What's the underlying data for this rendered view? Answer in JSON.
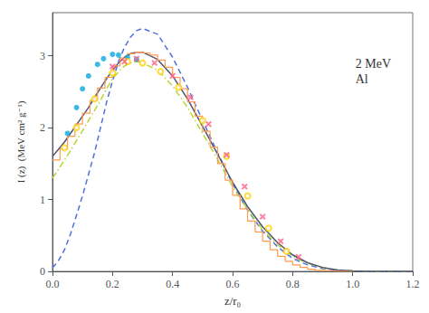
{
  "chart_data": {
    "type": "line",
    "annotation": "2 MeV\nAl",
    "xlabel": "z/r₀",
    "ylabel": "I (z)  (MeV cm² g⁻¹)",
    "xlim": [
      0,
      1.2
    ],
    "ylim": [
      0,
      3.6
    ],
    "xticks": [
      {
        "value": 0,
        "label": "0.0"
      },
      0.2,
      0.4,
      0.6,
      0.8,
      {
        "value": 1.0,
        "label": "1.0"
      },
      1.2
    ],
    "yticks": [
      0,
      1,
      2,
      3
    ],
    "grid": false,
    "series": [
      {
        "type": "line",
        "line_style": "dashed",
        "x": [
          0.0,
          0.02,
          0.04,
          0.06,
          0.08,
          0.1,
          0.12,
          0.14,
          0.16,
          0.18,
          0.2,
          0.22,
          0.24,
          0.26,
          0.28,
          0.3,
          0.35,
          0.4,
          0.45,
          0.5,
          0.55,
          0.6,
          0.65,
          0.7,
          0.75,
          0.8,
          0.85,
          0.9,
          0.95,
          1.0,
          1.05,
          1.1,
          1.15,
          1.2
        ],
        "values": [
          0.05,
          0.15,
          0.3,
          0.52,
          0.78,
          1.05,
          1.35,
          1.65,
          2.0,
          2.35,
          2.65,
          2.92,
          3.12,
          3.26,
          3.35,
          3.38,
          3.3,
          2.98,
          2.56,
          2.1,
          1.65,
          1.22,
          0.85,
          0.56,
          0.34,
          0.18,
          0.09,
          0.04,
          0.015,
          0.005,
          0.001,
          0.0,
          0.0,
          0.0
        ]
      },
      {
        "type": "line",
        "line_style": "dashdot",
        "x": [
          0.0,
          0.02,
          0.04,
          0.06,
          0.08,
          0.1,
          0.12,
          0.14,
          0.16,
          0.18,
          0.2,
          0.22,
          0.24,
          0.26,
          0.28,
          0.3,
          0.35,
          0.4,
          0.45,
          0.5,
          0.55,
          0.6,
          0.65,
          0.7,
          0.75,
          0.8,
          0.85,
          0.9,
          0.95,
          1.0,
          1.05,
          1.1,
          1.15,
          1.2
        ],
        "values": [
          1.3,
          1.42,
          1.55,
          1.68,
          1.82,
          1.96,
          2.1,
          2.24,
          2.38,
          2.54,
          2.68,
          2.78,
          2.86,
          2.9,
          2.92,
          2.9,
          2.8,
          2.58,
          2.28,
          1.92,
          1.56,
          1.18,
          0.86,
          0.58,
          0.37,
          0.21,
          0.11,
          0.05,
          0.018,
          0.005,
          0.001,
          0.0,
          0.0,
          0.0
        ]
      },
      {
        "type": "line",
        "line_style": "solid",
        "x": [
          0.0,
          0.02,
          0.04,
          0.06,
          0.08,
          0.1,
          0.12,
          0.14,
          0.16,
          0.18,
          0.2,
          0.22,
          0.24,
          0.26,
          0.28,
          0.3,
          0.35,
          0.4,
          0.45,
          0.5,
          0.55,
          0.6,
          0.65,
          0.7,
          0.75,
          0.8,
          0.85,
          0.9,
          0.95,
          1.0,
          1.05,
          1.1,
          1.15,
          1.2
        ],
        "values": [
          1.6,
          1.7,
          1.8,
          1.92,
          2.04,
          2.16,
          2.28,
          2.42,
          2.55,
          2.68,
          2.8,
          2.9,
          2.98,
          3.03,
          3.05,
          3.05,
          2.95,
          2.72,
          2.4,
          2.02,
          1.63,
          1.24,
          0.9,
          0.62,
          0.4,
          0.23,
          0.12,
          0.055,
          0.02,
          0.006,
          0.001,
          0.0,
          0.0,
          0.0
        ]
      },
      {
        "type": "step",
        "line_style": "solid",
        "x": [
          0.0,
          0.025,
          0.05,
          0.075,
          0.1,
          0.125,
          0.15,
          0.175,
          0.2,
          0.225,
          0.25,
          0.275,
          0.3,
          0.325,
          0.35,
          0.375,
          0.4,
          0.425,
          0.45,
          0.475,
          0.5,
          0.525,
          0.55,
          0.575,
          0.6,
          0.625,
          0.65,
          0.675,
          0.7,
          0.725,
          0.75,
          0.775,
          0.8,
          0.825,
          0.85,
          0.875,
          0.9,
          0.925,
          0.95,
          0.975,
          1.0
        ],
        "values": [
          1.55,
          1.7,
          1.88,
          2.05,
          2.2,
          2.38,
          2.55,
          2.7,
          2.86,
          2.97,
          3.03,
          3.05,
          3.04,
          3.01,
          2.94,
          2.84,
          2.7,
          2.54,
          2.36,
          2.16,
          1.95,
          1.73,
          1.5,
          1.27,
          1.06,
          0.87,
          0.7,
          0.55,
          0.42,
          0.3,
          0.21,
          0.14,
          0.09,
          0.055,
          0.03,
          0.015,
          0.007,
          0.003,
          0.001,
          0.0,
          0.0
        ]
      },
      {
        "type": "scatter",
        "marker": "circle",
        "x": [
          0.05,
          0.08,
          0.1,
          0.12,
          0.15,
          0.17,
          0.2,
          0.22,
          0.25,
          0.28
        ],
        "values": [
          1.92,
          2.28,
          2.54,
          2.72,
          2.88,
          2.96,
          3.02,
          3.01,
          2.98,
          2.95
        ]
      },
      {
        "type": "scatter",
        "marker": "open_circle",
        "x": [
          0.04,
          0.08,
          0.14,
          0.2,
          0.25,
          0.3,
          0.36,
          0.42,
          0.5,
          0.58,
          0.65,
          0.72,
          0.78
        ],
        "values": [
          1.72,
          2.0,
          2.4,
          2.76,
          2.92,
          2.9,
          2.78,
          2.56,
          2.1,
          1.6,
          1.05,
          0.6,
          0.28
        ]
      },
      {
        "type": "scatter",
        "marker": "x",
        "x": [
          0.2,
          0.24,
          0.28,
          0.34,
          0.4,
          0.46,
          0.52,
          0.58,
          0.64,
          0.7,
          0.76,
          0.82
        ],
        "values": [
          2.85,
          2.92,
          2.96,
          2.9,
          2.72,
          2.42,
          2.05,
          1.62,
          1.18,
          0.76,
          0.42,
          0.2
        ]
      }
    ]
  }
}
